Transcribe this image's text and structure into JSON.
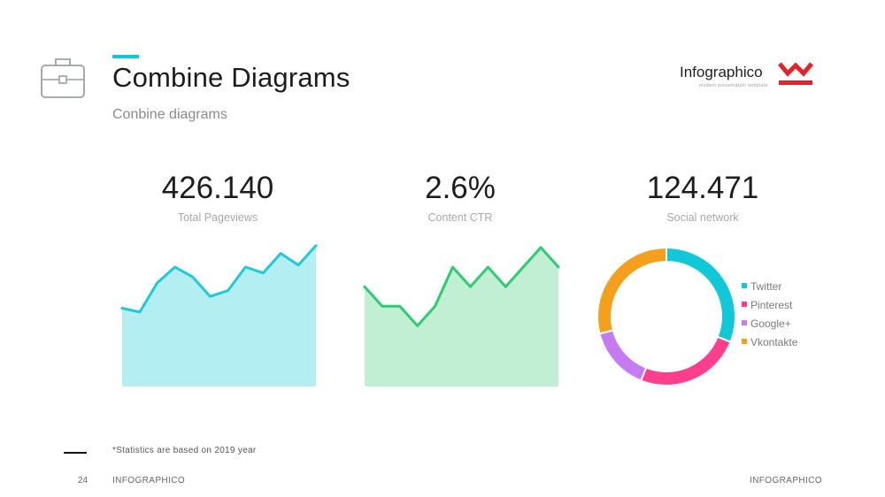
{
  "header": {
    "title": "Combine Diagrams",
    "subtitle": "Conbine diagrams",
    "accent_color": "#10c8d8",
    "icon": "briefcase-icon"
  },
  "logo": {
    "name": "Infographico",
    "tagline": "modern presentation template",
    "mark_color": "#e8202a"
  },
  "stats": [
    {
      "value": "426.140",
      "label": "Total Pageviews"
    },
    {
      "value": "2.6%",
      "label": "Content CTR"
    },
    {
      "value": "124.471",
      "label": "Social network"
    }
  ],
  "chart_data": [
    {
      "type": "area",
      "title": "Total Pageviews",
      "x": [
        1,
        2,
        3,
        4,
        5,
        6,
        7,
        8,
        9,
        10,
        11,
        12
      ],
      "y": [
        40,
        38,
        53,
        61,
        56,
        46,
        49,
        61,
        58,
        68,
        62,
        72
      ],
      "ylim": [
        0,
        80
      ],
      "line_color": "#1ecad8",
      "fill_color": "#b3eef2",
      "grid": false
    },
    {
      "type": "area",
      "title": "Content CTR",
      "x": [
        1,
        2,
        3,
        4,
        5,
        6,
        7,
        8,
        9,
        10,
        11,
        12
      ],
      "y": [
        51,
        41,
        41,
        31,
        41,
        61,
        51,
        61,
        51,
        61,
        71,
        61
      ],
      "ylim": [
        0,
        80
      ],
      "line_color": "#2ecc6f",
      "fill_color": "#c1efd3",
      "grid": false
    },
    {
      "type": "pie",
      "donut": true,
      "title": "Social network",
      "labels": [
        "Twitter",
        "Pinterest",
        "Google+",
        "Vkontakte"
      ],
      "values": [
        31,
        25,
        15,
        29
      ],
      "colors": [
        "#10c8d8",
        "#ff3f8e",
        "#c77bf2",
        "#f4a01d"
      ],
      "legend_position": "right"
    }
  ],
  "footer": {
    "footnote": "*Statistics are based on 2019 year",
    "page_number": "24",
    "left_text": "INFOGRAPHICO",
    "right_text": "INFOGRAPHICO"
  }
}
